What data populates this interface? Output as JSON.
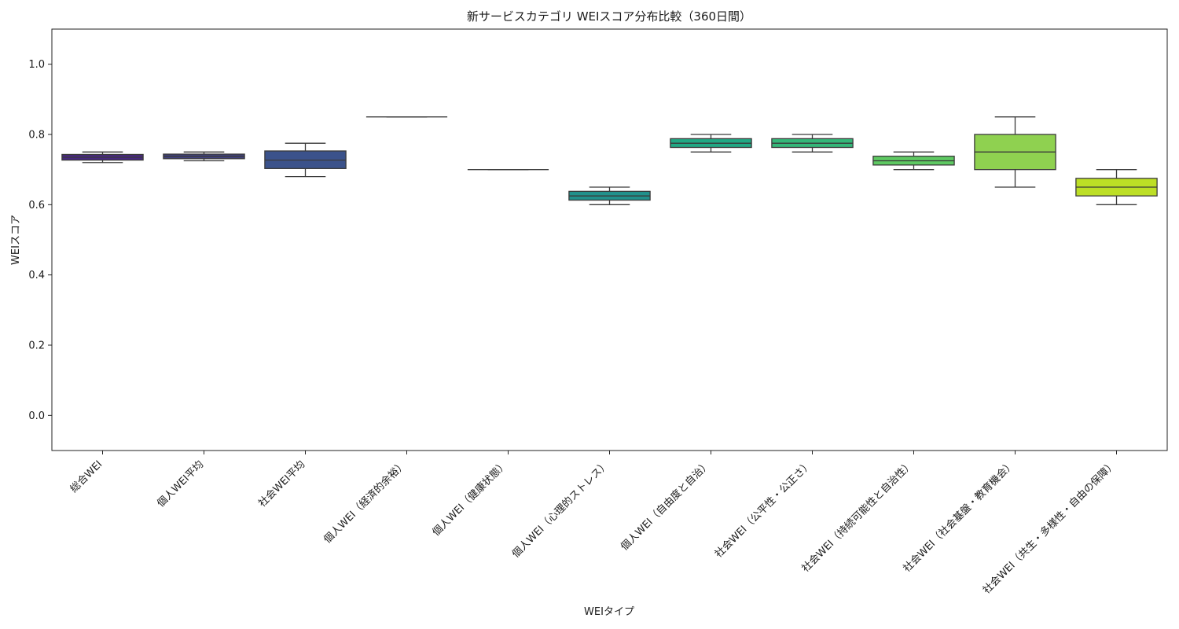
{
  "chart_data": {
    "type": "box",
    "title": "新サービスカテゴリ WEIスコア分布比較（360日間）",
    "xlabel": "WEIタイプ",
    "ylabel": "WEIスコア",
    "ylim": [
      -0.1,
      1.1
    ],
    "yticks": [
      "0.0",
      "0.2",
      "0.4",
      "0.6",
      "0.8",
      "1.0"
    ],
    "ytick_values": [
      0.0,
      0.2,
      0.4,
      0.6,
      0.8,
      1.0
    ],
    "grid": false,
    "categories": [
      "総合WEI",
      "個人WEI平均",
      "社会WEI平均",
      "個人WEI（経済的余裕）",
      "個人WEI（健康状態）",
      "個人WEI（心理的ストレス）",
      "個人WEI（自由度と自治）",
      "社会WEI（公平性・公正さ）",
      "社会WEI（持続可能性と自治性）",
      "社会WEI（社会基盤・教育機会）",
      "社会WEI（共生・多様性・自由の保障）"
    ],
    "boxes": [
      {
        "min": 0.72,
        "q1": 0.727,
        "median": 0.735,
        "q3": 0.743,
        "max": 0.75,
        "color": "#47287f"
      },
      {
        "min": 0.725,
        "q1": 0.731,
        "median": 0.738,
        "q3": 0.744,
        "max": 0.75,
        "color": "#40427f"
      },
      {
        "min": 0.68,
        "q1": 0.703,
        "median": 0.727,
        "q3": 0.753,
        "max": 0.775,
        "color": "#3b528b"
      },
      {
        "min": 0.85,
        "q1": 0.85,
        "median": 0.85,
        "q3": 0.85,
        "max": 0.85,
        "color": "#31688e"
      },
      {
        "min": 0.7,
        "q1": 0.7,
        "median": 0.7,
        "q3": 0.7,
        "max": 0.7,
        "color": "#2a788e"
      },
      {
        "min": 0.6,
        "q1": 0.613,
        "median": 0.625,
        "q3": 0.638,
        "max": 0.65,
        "color": "#21918c"
      },
      {
        "min": 0.75,
        "q1": 0.763,
        "median": 0.775,
        "q3": 0.788,
        "max": 0.8,
        "color": "#22a884"
      },
      {
        "min": 0.75,
        "q1": 0.763,
        "median": 0.775,
        "q3": 0.788,
        "max": 0.8,
        "color": "#35b779"
      },
      {
        "min": 0.7,
        "q1": 0.713,
        "median": 0.725,
        "q3": 0.738,
        "max": 0.75,
        "color": "#5ec962"
      },
      {
        "min": 0.65,
        "q1": 0.7,
        "median": 0.75,
        "q3": 0.8,
        "max": 0.85,
        "color": "#8fd150"
      },
      {
        "min": 0.6,
        "q1": 0.625,
        "median": 0.65,
        "q3": 0.675,
        "max": 0.7,
        "color": "#bddf26"
      }
    ]
  }
}
